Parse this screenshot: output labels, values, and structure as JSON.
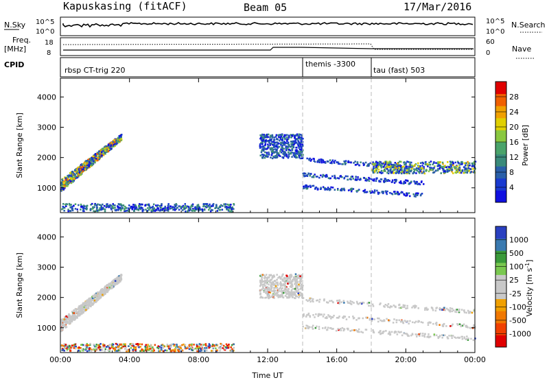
{
  "header": {
    "station": "Kapuskasing (fitACF)",
    "beam": "Beam 05",
    "date": "17/Mar/2016"
  },
  "panels": {
    "sky_label": "N.Sky",
    "sky_ticks": [
      "10^5",
      "10^0"
    ],
    "sky_right_ticks": [
      "10^5",
      "10^0"
    ],
    "search_label": "N.Search",
    "freq_label": "Freq.",
    "freq_unit": "[MHz]",
    "freq_ticks": [
      "18",
      "8"
    ],
    "nave_label": "Nave",
    "nave_ticks": [
      "60",
      "0"
    ],
    "cpid_label": "CPID",
    "cpid_segments": [
      {
        "name": "rbsp CT-trig 220",
        "start_hour": 0
      },
      {
        "name": "themis -3300",
        "start_hour": 14
      },
      {
        "name": "tau (fast) 503",
        "start_hour": 18
      }
    ]
  },
  "colors": {
    "power": [
      "#1010e0",
      "#1a3ad0",
      "#2a5fa8",
      "#3a8a7a",
      "#4aa36a",
      "#8ac840",
      "#e0d000",
      "#f0a000",
      "#f06000",
      "#e00000"
    ],
    "velocity": [
      "#e00000",
      "#f04000",
      "#f07800",
      "#f0a000",
      "#c8c8c8",
      "#c8c8c8",
      "#7ac850",
      "#3a9a3a",
      "#3a7ab0",
      "#2a40c0"
    ]
  },
  "chart_data": [
    {
      "type": "heatmap",
      "quantity": "power",
      "xlabel": "",
      "ylabel": "Slant Range [km]",
      "x_ticks": [
        "00:00",
        "04:00",
        "08:00",
        "12:00",
        "16:00",
        "20:00",
        "00:00"
      ],
      "y_ticks": [
        "1000",
        "2000",
        "3000",
        "4000"
      ],
      "xlim_hours": [
        0,
        24
      ],
      "ylim_km": [
        180,
        4620
      ],
      "colorbar_label": "Power [dB]",
      "colorbar_ticks": [
        "28",
        "24",
        "20",
        "16",
        "12",
        "8",
        "4"
      ],
      "colorbar_range": [
        0,
        30
      ],
      "mode_change_lines_hours": [
        14,
        18
      ],
      "features": [
        {
          "hours": [
            0,
            3.5
          ],
          "range_km": [
            1200,
            2900
          ],
          "db_max": 26
        },
        {
          "hours": [
            11.5,
            14
          ],
          "range_km": [
            2000,
            2800
          ],
          "db_max": 12
        },
        {
          "hours": [
            14,
            21
          ],
          "range_km": [
            1000,
            2200
          ],
          "db_max": 10
        },
        {
          "hours": [
            18,
            24
          ],
          "range_km": [
            1500,
            1900
          ],
          "db_max": 22
        },
        {
          "hours": [
            0,
            10
          ],
          "range_km": [
            250,
            500
          ],
          "db_max": 14
        }
      ]
    },
    {
      "type": "heatmap",
      "quantity": "velocity",
      "xlabel": "Time UT",
      "ylabel": "Slant Range [km]",
      "x_ticks": [
        "00:00",
        "04:00",
        "08:00",
        "12:00",
        "16:00",
        "20:00",
        "00:00"
      ],
      "y_ticks": [
        "1000",
        "2000",
        "3000",
        "4000"
      ],
      "xlim_hours": [
        0,
        24
      ],
      "ylim_km": [
        180,
        4620
      ],
      "colorbar_label": "Velocity [m s^-1]",
      "colorbar_ticks": [
        "1000",
        "500",
        "100",
        "25",
        "-25",
        "-100",
        "-500",
        "-1000"
      ],
      "mode_change_lines_hours": [
        14,
        18
      ],
      "features": [
        {
          "hours": [
            0,
            3.5
          ],
          "range_km": [
            1200,
            2900
          ],
          "velocity": "gray"
        },
        {
          "hours": [
            11.5,
            14
          ],
          "range_km": [
            2000,
            2800
          ],
          "velocity": "gray"
        },
        {
          "hours": [
            14,
            24
          ],
          "range_km": [
            1000,
            2200
          ],
          "velocity": "gray"
        },
        {
          "hours": [
            0,
            10
          ],
          "range_km": [
            250,
            500
          ],
          "velocity": "mixed"
        }
      ]
    }
  ]
}
